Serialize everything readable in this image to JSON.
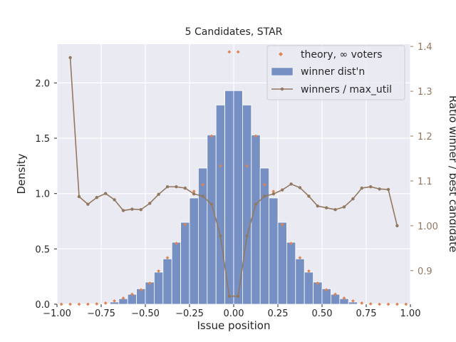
{
  "chart_data": {
    "type": "bar",
    "title": "5 Candidates, STAR",
    "xlabel": "Issue position",
    "ylabel": "Density",
    "y2label": "Ratio winner / best candidate",
    "xlim": [
      -1.0,
      1.0
    ],
    "ylim": [
      0,
      2.35
    ],
    "y2lim": [
      0.825,
      1.405
    ],
    "xticks": [
      -1.0,
      -0.75,
      -0.5,
      -0.25,
      0.0,
      0.25,
      0.5,
      0.75,
      1.0
    ],
    "xtick_labels": [
      "−1.00",
      "−0.75",
      "−0.50",
      "−0.25",
      "0.00",
      "0.25",
      "0.50",
      "0.75",
      "1.00"
    ],
    "yticks": [
      0.0,
      0.5,
      1.0,
      1.5,
      2.0
    ],
    "ytick_labels": [
      "0.0",
      "0.5",
      "1.0",
      "1.5",
      "2.0"
    ],
    "y2ticks": [
      0.9,
      1.0,
      1.1,
      1.2,
      1.3,
      1.4
    ],
    "y2tick_labels": [
      "0.9",
      "1.00",
      "1.1",
      "1.2",
      "1.3",
      "1.4"
    ],
    "grid": true,
    "legend_position": "top-right",
    "colors": {
      "bar": "#7690c4",
      "theory": "#dd8452",
      "ratio": "#937860",
      "bg": "#eaeaf2"
    },
    "series": [
      {
        "name": "winner dist'n",
        "kind": "bar",
        "bin_width": 0.05,
        "x": [
          -0.975,
          -0.925,
          -0.875,
          -0.825,
          -0.775,
          -0.725,
          -0.675,
          -0.625,
          -0.575,
          -0.525,
          -0.475,
          -0.425,
          -0.375,
          -0.325,
          -0.275,
          -0.225,
          -0.175,
          -0.125,
          -0.075,
          -0.025,
          0.025,
          0.075,
          0.125,
          0.175,
          0.225,
          0.275,
          0.325,
          0.375,
          0.425,
          0.475,
          0.525,
          0.575,
          0.625,
          0.675,
          0.725,
          0.775,
          0.825,
          0.875,
          0.925,
          0.975
        ],
        "values": [
          0,
          0,
          0,
          0,
          0,
          0.005,
          0.02,
          0.05,
          0.09,
          0.14,
          0.2,
          0.29,
          0.41,
          0.56,
          0.74,
          0.96,
          1.23,
          1.53,
          1.8,
          1.93,
          1.93,
          1.8,
          1.53,
          1.23,
          0.96,
          0.74,
          0.56,
          0.41,
          0.29,
          0.2,
          0.14,
          0.09,
          0.05,
          0.02,
          0.005,
          0,
          0,
          0,
          0,
          0
        ]
      },
      {
        "name": "theory, ∞ voters",
        "kind": "scatter",
        "x": [
          -0.975,
          -0.925,
          -0.875,
          -0.825,
          -0.775,
          -0.725,
          -0.675,
          -0.625,
          -0.575,
          -0.525,
          -0.475,
          -0.425,
          -0.375,
          -0.325,
          -0.275,
          -0.225,
          -0.175,
          -0.125,
          -0.075,
          -0.025,
          0.025,
          0.075,
          0.125,
          0.175,
          0.225,
          0.275,
          0.325,
          0.375,
          0.425,
          0.475,
          0.525,
          0.575,
          0.625,
          0.675,
          0.725,
          0.775,
          0.825,
          0.875,
          0.925,
          0.975
        ],
        "values": [
          0,
          0,
          0,
          0,
          0.003,
          0.01,
          0.03,
          0.055,
          0.09,
          0.13,
          0.19,
          0.3,
          0.42,
          0.55,
          0.72,
          1.02,
          1.08,
          1.52,
          1.25,
          2.28,
          2.28,
          1.25,
          1.52,
          1.08,
          1.02,
          0.72,
          0.55,
          0.42,
          0.3,
          0.19,
          0.13,
          0.09,
          0.055,
          0.03,
          0.01,
          0.003,
          0,
          0,
          0,
          0
        ]
      },
      {
        "name": "winners / max_util",
        "kind": "line",
        "axis": "right",
        "x": [
          -0.925,
          -0.875,
          -0.825,
          -0.775,
          -0.725,
          -0.675,
          -0.625,
          -0.575,
          -0.525,
          -0.475,
          -0.425,
          -0.375,
          -0.325,
          -0.275,
          -0.225,
          -0.175,
          -0.125,
          -0.075,
          -0.025,
          0.025,
          0.075,
          0.125,
          0.175,
          0.225,
          0.275,
          0.325,
          0.375,
          0.425,
          0.475,
          0.525,
          0.575,
          0.625,
          0.675,
          0.725,
          0.775,
          0.825,
          0.875,
          0.925
        ],
        "values": [
          1.375,
          1.065,
          1.048,
          1.063,
          1.072,
          1.058,
          1.034,
          1.037,
          1.036,
          1.05,
          1.07,
          1.087,
          1.087,
          1.084,
          1.071,
          1.066,
          1.048,
          0.977,
          0.843,
          0.843,
          0.977,
          1.048,
          1.066,
          1.071,
          1.08,
          1.093,
          1.085,
          1.066,
          1.044,
          1.04,
          1.036,
          1.042,
          1.06,
          1.084,
          1.087,
          1.082,
          1.081,
          1.0
        ]
      }
    ]
  }
}
